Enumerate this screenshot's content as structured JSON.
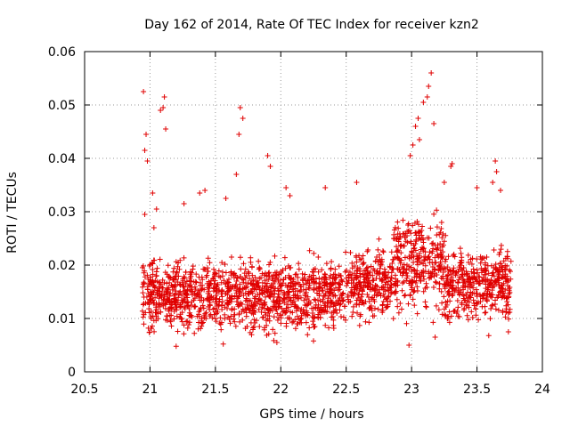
{
  "chart_data": {
    "type": "scatter",
    "title": "Day 162 of 2014, Rate Of TEC Index for receiver kzn2",
    "xlabel": "GPS time / hours",
    "ylabel": "ROTI / TECUs",
    "xlim": [
      20.5,
      24
    ],
    "ylim": [
      0,
      0.06
    ],
    "x_ticks": [
      20.5,
      21,
      21.5,
      22,
      22.5,
      23,
      23.5,
      24
    ],
    "x_tick_labels": [
      "20.5",
      "21",
      "21.5",
      "22",
      "22.5",
      "23",
      "23.5",
      "24"
    ],
    "y_ticks": [
      0,
      0.01,
      0.02,
      0.03,
      0.04,
      0.05,
      0.06
    ],
    "y_tick_labels": [
      "0",
      "0.01",
      "0.02",
      "0.03",
      "0.04",
      "0.05",
      "0.06"
    ],
    "grid": true,
    "marker": "plus",
    "series": [
      {
        "name": "kzn2",
        "color": "#e00000",
        "x_range": [
          20.94,
          23.76
        ],
        "y_range": [
          0.0045,
          0.056
        ],
        "points": [
          [
            20.95,
            0.0525
          ],
          [
            20.97,
            0.0445
          ],
          [
            20.98,
            0.0395
          ],
          [
            20.96,
            0.0415
          ],
          [
            21.08,
            0.049
          ],
          [
            21.11,
            0.0515
          ],
          [
            21.12,
            0.0455
          ],
          [
            21.1,
            0.0495
          ],
          [
            21.02,
            0.0335
          ],
          [
            20.96,
            0.0295
          ],
          [
            21.05,
            0.0305
          ],
          [
            21.03,
            0.027
          ],
          [
            21.69,
            0.0495
          ],
          [
            21.71,
            0.0475
          ],
          [
            21.68,
            0.0445
          ],
          [
            21.66,
            0.037
          ],
          [
            21.9,
            0.0405
          ],
          [
            21.92,
            0.0385
          ],
          [
            22.04,
            0.0345
          ],
          [
            22.07,
            0.033
          ],
          [
            22.34,
            0.0345
          ],
          [
            22.58,
            0.0355
          ],
          [
            23.13,
            0.0535
          ],
          [
            23.15,
            0.056
          ],
          [
            23.12,
            0.0515
          ],
          [
            23.05,
            0.0475
          ],
          [
            23.09,
            0.0505
          ],
          [
            23.03,
            0.046
          ],
          [
            23.17,
            0.0465
          ],
          [
            23.01,
            0.0425
          ],
          [
            23.06,
            0.0435
          ],
          [
            22.99,
            0.0405
          ],
          [
            23.3,
            0.0385
          ],
          [
            23.31,
            0.039
          ],
          [
            23.64,
            0.0395
          ],
          [
            23.65,
            0.0375
          ],
          [
            23.62,
            0.0355
          ],
          [
            23.68,
            0.034
          ],
          [
            23.5,
            0.0345
          ],
          [
            23.25,
            0.0355
          ],
          [
            21.38,
            0.0335
          ],
          [
            21.42,
            0.034
          ],
          [
            21.58,
            0.0325
          ],
          [
            21.26,
            0.0315
          ],
          [
            21.97,
            0.0055
          ],
          [
            21.2,
            0.0048
          ],
          [
            22.25,
            0.0058
          ],
          [
            22.98,
            0.005
          ],
          [
            23.18,
            0.0065
          ],
          [
            23.59,
            0.0068
          ],
          [
            23.74,
            0.0075
          ],
          [
            21.56,
            0.0052
          ]
        ]
      }
    ]
  }
}
